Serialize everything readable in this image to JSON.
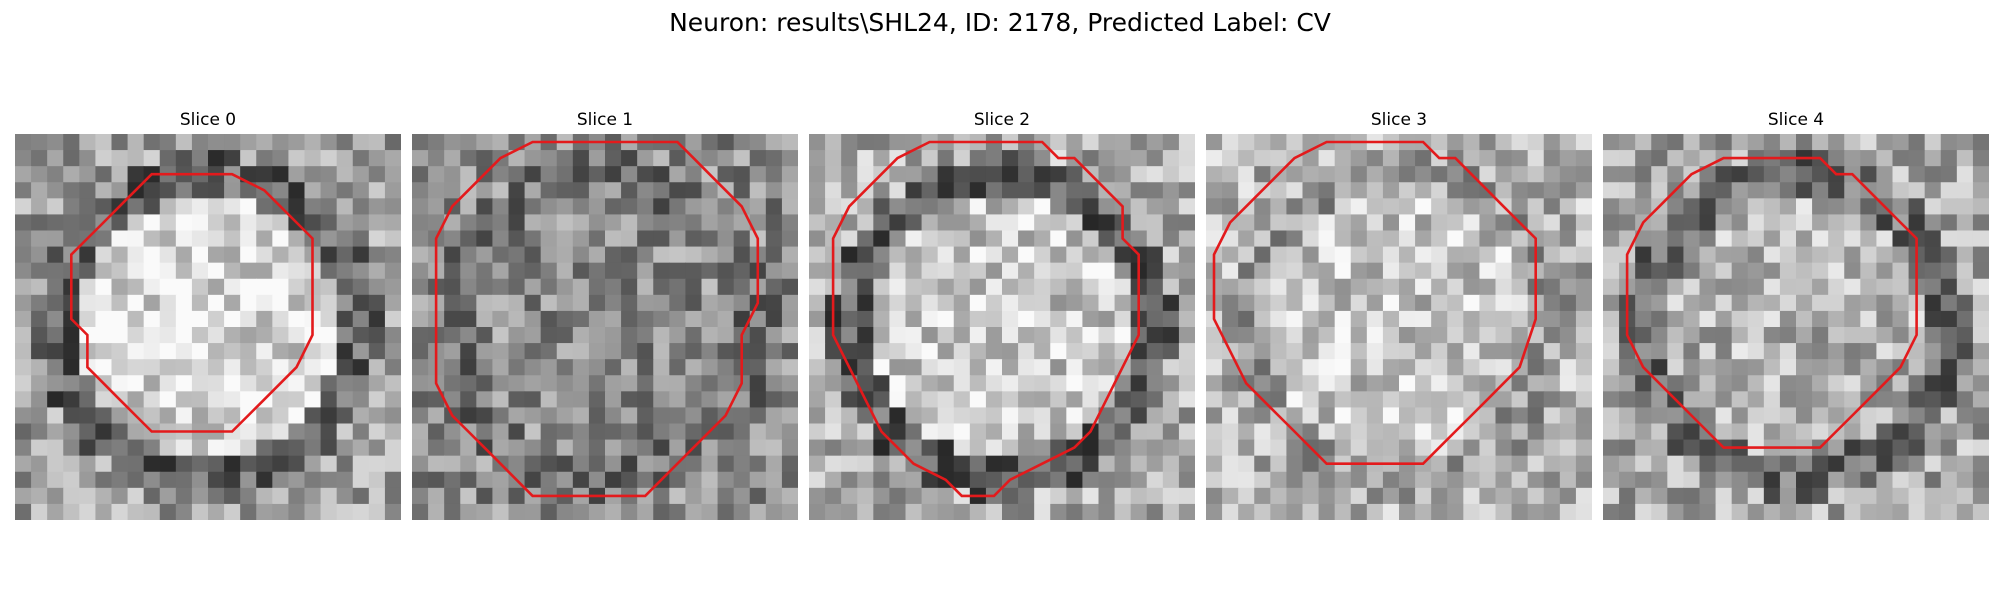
{
  "figure": {
    "title": "Neuron: results\\SHL24, ID: 2178, Predicted Label: CV",
    "contour_color": "#e31a1c",
    "colormap": "gray"
  },
  "panels": [
    {
      "title": "Slice 0",
      "seed": 11,
      "center_brightness": 0.85,
      "ring_darkness": 0.55,
      "bg_level": 0.62,
      "contour": [
        [
          8,
          2
        ],
        [
          13,
          2
        ],
        [
          15,
          3
        ],
        [
          16,
          4
        ],
        [
          17,
          5
        ],
        [
          18,
          6
        ],
        [
          18,
          12
        ],
        [
          17,
          14
        ],
        [
          16,
          15
        ],
        [
          15,
          16
        ],
        [
          14,
          17
        ],
        [
          13,
          18
        ],
        [
          8,
          18
        ],
        [
          7,
          17
        ],
        [
          6,
          16
        ],
        [
          5,
          15
        ],
        [
          4,
          14
        ],
        [
          4,
          12
        ],
        [
          3,
          11
        ],
        [
          3,
          7
        ],
        [
          4,
          6
        ],
        [
          5,
          5
        ],
        [
          6,
          4
        ],
        [
          7,
          3
        ]
      ]
    },
    {
      "title": "Slice 1",
      "seed": 23,
      "center_brightness": 0.55,
      "ring_darkness": 0.35,
      "bg_level": 0.55,
      "contour": [
        [
          7,
          0
        ],
        [
          16,
          0
        ],
        [
          17,
          1
        ],
        [
          18,
          2
        ],
        [
          19,
          3
        ],
        [
          20,
          4
        ],
        [
          21,
          6
        ],
        [
          21,
          10
        ],
        [
          20,
          12
        ],
        [
          20,
          15
        ],
        [
          19,
          17
        ],
        [
          17,
          19
        ],
        [
          15,
          21
        ],
        [
          14,
          22
        ],
        [
          7,
          22
        ],
        [
          6,
          21
        ],
        [
          5,
          20
        ],
        [
          4,
          19
        ],
        [
          3,
          18
        ],
        [
          2,
          17
        ],
        [
          1,
          15
        ],
        [
          1,
          6
        ],
        [
          2,
          4
        ],
        [
          3,
          3
        ],
        [
          4,
          2
        ],
        [
          5,
          1
        ]
      ]
    },
    {
      "title": "Slice 2",
      "seed": 37,
      "center_brightness": 0.78,
      "ring_darkness": 0.6,
      "bg_level": 0.68,
      "contour": [
        [
          7,
          0
        ],
        [
          14,
          0
        ],
        [
          15,
          1
        ],
        [
          16,
          1
        ],
        [
          17,
          2
        ],
        [
          18,
          3
        ],
        [
          19,
          4
        ],
        [
          19,
          6
        ],
        [
          20,
          7
        ],
        [
          20,
          12
        ],
        [
          19,
          14
        ],
        [
          18,
          16
        ],
        [
          17,
          18
        ],
        [
          16,
          19
        ],
        [
          14,
          20
        ],
        [
          12,
          21
        ],
        [
          11,
          22
        ],
        [
          9,
          22
        ],
        [
          8,
          21
        ],
        [
          6,
          20
        ],
        [
          5,
          19
        ],
        [
          4,
          18
        ],
        [
          3,
          16
        ],
        [
          2,
          14
        ],
        [
          1,
          12
        ],
        [
          1,
          6
        ],
        [
          2,
          4
        ],
        [
          3,
          3
        ],
        [
          4,
          2
        ],
        [
          5,
          1
        ]
      ]
    },
    {
      "title": "Slice 3",
      "seed": 51,
      "center_brightness": 0.78,
      "ring_darkness": 0.25,
      "bg_level": 0.7,
      "contour": [
        [
          7,
          0
        ],
        [
          13,
          0
        ],
        [
          14,
          1
        ],
        [
          15,
          1
        ],
        [
          16,
          2
        ],
        [
          17,
          3
        ],
        [
          18,
          4
        ],
        [
          19,
          5
        ],
        [
          20,
          6
        ],
        [
          20,
          11
        ],
        [
          19,
          14
        ],
        [
          18,
          15
        ],
        [
          17,
          16
        ],
        [
          16,
          17
        ],
        [
          15,
          18
        ],
        [
          14,
          19
        ],
        [
          13,
          20
        ],
        [
          7,
          20
        ],
        [
          6,
          19
        ],
        [
          5,
          18
        ],
        [
          4,
          17
        ],
        [
          3,
          16
        ],
        [
          2,
          15
        ],
        [
          1,
          13
        ],
        [
          0,
          11
        ],
        [
          0,
          7
        ],
        [
          1,
          5
        ],
        [
          2,
          4
        ],
        [
          3,
          3
        ],
        [
          4,
          2
        ],
        [
          5,
          1
        ]
      ]
    },
    {
      "title": "Slice 4",
      "seed": 67,
      "center_brightness": 0.7,
      "ring_darkness": 0.5,
      "bg_level": 0.66,
      "contour": [
        [
          7,
          1
        ],
        [
          13,
          1
        ],
        [
          14,
          2
        ],
        [
          15,
          2
        ],
        [
          16,
          3
        ],
        [
          17,
          4
        ],
        [
          18,
          5
        ],
        [
          19,
          6
        ],
        [
          19,
          12
        ],
        [
          18,
          14
        ],
        [
          17,
          15
        ],
        [
          16,
          16
        ],
        [
          15,
          17
        ],
        [
          14,
          18
        ],
        [
          13,
          19
        ],
        [
          7,
          19
        ],
        [
          6,
          18
        ],
        [
          5,
          17
        ],
        [
          4,
          16
        ],
        [
          3,
          15
        ],
        [
          2,
          14
        ],
        [
          1,
          12
        ],
        [
          1,
          7
        ],
        [
          2,
          5
        ],
        [
          3,
          4
        ],
        [
          4,
          3
        ],
        [
          5,
          2
        ]
      ]
    }
  ]
}
